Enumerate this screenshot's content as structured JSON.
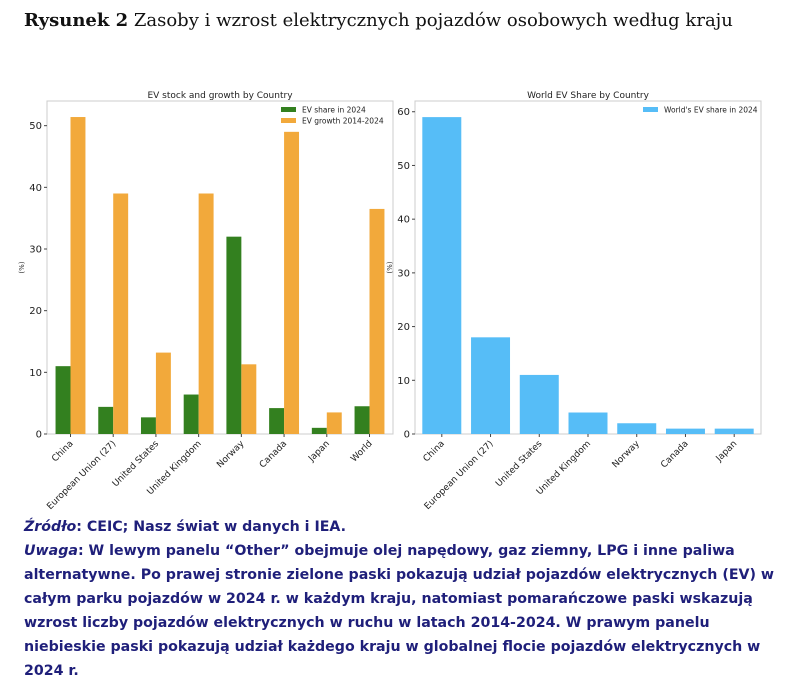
{
  "figure": {
    "label": "Rysunek 2",
    "title": "Zasoby i wzrost elektrycznych pojazdów osobowych według kraju"
  },
  "chart_data": [
    {
      "type": "bar",
      "title": "EV stock and growth by Country",
      "xlabel": "",
      "ylabel": "(%)",
      "ylim": [
        0,
        54
      ],
      "yticks": [
        0,
        10,
        20,
        30,
        40,
        50
      ],
      "grid": false,
      "legend": "top-right",
      "categories": [
        "China",
        "European Union (27)",
        "United States",
        "United Kingdom",
        "Norway",
        "Canada",
        "Japan",
        "World"
      ],
      "series": [
        {
          "name": "EV share in 2024",
          "color": "#33801f",
          "values": [
            11,
            4.4,
            2.7,
            6.4,
            32,
            4.2,
            1,
            4.5
          ]
        },
        {
          "name": "EV growth 2014-2024",
          "color": "#f2a93b",
          "values": [
            51.4,
            39,
            13.2,
            39,
            11.3,
            49,
            3.5,
            36.5
          ]
        }
      ]
    },
    {
      "type": "bar",
      "title": "World EV Share by Country",
      "xlabel": "",
      "ylabel": "(%)",
      "ylim": [
        0,
        62
      ],
      "yticks": [
        0,
        10,
        20,
        30,
        40,
        50,
        60
      ],
      "grid": false,
      "legend": "top-right",
      "categories": [
        "China",
        "European Union (27)",
        "United States",
        "United Kingdom",
        "Norway",
        "Canada",
        "Japan"
      ],
      "series": [
        {
          "name": "World's EV share in 2024",
          "color": "#56bdf7",
          "values": [
            59,
            18,
            11,
            4,
            2,
            1,
            1
          ]
        }
      ]
    }
  ],
  "notes": {
    "source_label": "Źródło",
    "source_text": ": CEIC; Nasz świat w danych i IEA.",
    "note_label": "Uwaga",
    "note_text": ": W lewym panelu “Other” obejmuje olej napędowy, gaz ziemny, LPG i inne paliwa alternatywne. Po prawej stronie zielone paski pokazują udział pojazdów elektrycznych (EV) w całym parku pojazdów w 2024 r. w każdym kraju, natomiast pomarańczowe paski wskazują wzrost liczby pojazdów elektrycznych w ruchu w latach 2014-2024. W prawym panelu niebieskie paski pokazują udział każdego kraju w globalnej flocie pojazdów elektrycznych w 2024 r."
  }
}
